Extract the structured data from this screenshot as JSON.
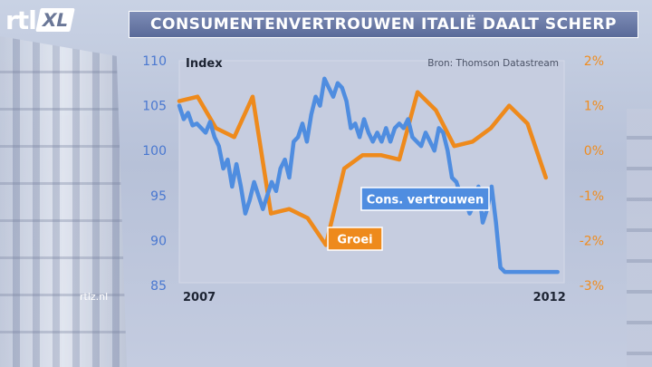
{
  "brand": {
    "logo_left": "rtl",
    "logo_right": "XL",
    "watermark": "rtlz.nl"
  },
  "header": {
    "title": "CONSUMENTENVERTROUWEN ITALIË DAALT SCHERP"
  },
  "colors": {
    "confidence": "#4f8de0",
    "growth": "#ee8a1c",
    "plot_bg": "#c6cde0"
  },
  "chart_data": {
    "type": "line",
    "title": "CONSUMENTENVERTROUWEN ITALIË DAALT SCHERP",
    "source": "Bron: Thomson Datastream",
    "ylabel": "Index",
    "xlabel": "",
    "x_range": [
      2007.0,
      2012.25
    ],
    "x_tick_labels": [
      "2007",
      "2012"
    ],
    "x_ticks": [
      2007.0,
      2012.0
    ],
    "y_left": {
      "range": [
        85,
        110
      ],
      "ticks": [
        85,
        90,
        95,
        100,
        105,
        110
      ],
      "tick_labels": [
        "85",
        "90",
        "95",
        "100",
        "105",
        "110"
      ]
    },
    "y_right": {
      "range": [
        -3,
        2
      ],
      "ticks": [
        -3,
        -2,
        -1,
        0,
        1,
        2
      ],
      "tick_labels": [
        "-3%",
        "-2%",
        "-1%",
        "0%",
        "1%",
        "2%"
      ]
    },
    "grid": false,
    "series": [
      {
        "name": "Cons. vertrouwen",
        "axis": "left",
        "x": [
          2007.0,
          2007.06,
          2007.12,
          2007.18,
          2007.24,
          2007.3,
          2007.36,
          2007.42,
          2007.48,
          2007.54,
          2007.6,
          2007.66,
          2007.72,
          2007.78,
          2007.84,
          2007.9,
          2007.96,
          2008.02,
          2008.08,
          2008.14,
          2008.2,
          2008.26,
          2008.32,
          2008.38,
          2008.44,
          2008.5,
          2008.56,
          2008.62,
          2008.68,
          2008.74,
          2008.8,
          2008.86,
          2008.92,
          2008.98,
          2009.04,
          2009.1,
          2009.16,
          2009.22,
          2009.28,
          2009.34,
          2009.4,
          2009.46,
          2009.52,
          2009.58,
          2009.64,
          2009.7,
          2009.76,
          2009.82,
          2009.88,
          2009.94,
          2010.0,
          2010.06,
          2010.12,
          2010.18,
          2010.24,
          2010.3,
          2010.36,
          2010.42,
          2010.48,
          2010.54,
          2010.6,
          2010.66,
          2010.72,
          2010.78,
          2010.84,
          2010.9,
          2010.96,
          2011.02,
          2011.08,
          2011.14,
          2011.2,
          2011.26,
          2011.32,
          2011.38,
          2011.44,
          2011.5,
          2011.56,
          2011.62,
          2011.68,
          2011.74,
          2011.8,
          2011.86,
          2011.92,
          2011.98,
          2012.04,
          2012.1,
          2012.16
        ],
        "values": [
          105.0,
          103.5,
          104.2,
          102.8,
          103.0,
          102.5,
          102.0,
          103.2,
          101.5,
          100.5,
          98.0,
          99.0,
          96.0,
          98.5,
          96.0,
          93.0,
          94.5,
          96.5,
          95.0,
          93.5,
          95.0,
          96.5,
          95.5,
          98.0,
          99.0,
          97.0,
          101.0,
          101.5,
          103.0,
          101.0,
          104.0,
          106.0,
          105.0,
          108.0,
          107.0,
          106.0,
          107.5,
          107.0,
          105.5,
          102.5,
          103.0,
          101.5,
          103.5,
          102.0,
          101.0,
          102.0,
          101.0,
          102.5,
          101.0,
          102.5,
          103.0,
          102.5,
          103.5,
          101.5,
          101.0,
          100.5,
          102.0,
          101.0,
          100.0,
          102.5,
          102.0,
          100.0,
          97.0,
          96.5,
          95.0,
          94.5,
          93.0,
          94.0,
          96.0,
          92.0,
          93.5,
          96.0,
          92.0,
          87.0,
          86.5,
          86.5,
          86.5,
          86.5,
          86.5,
          86.5,
          86.5,
          86.5,
          86.5,
          86.5,
          86.5,
          86.5,
          86.5
        ]
      },
      {
        "name": "Groei",
        "axis": "right",
        "x": [
          2007.0,
          2007.25,
          2007.5,
          2007.75,
          2008.0,
          2008.25,
          2008.5,
          2008.75,
          2009.0,
          2009.25,
          2009.5,
          2009.75,
          2010.0,
          2010.25,
          2010.5,
          2010.75,
          2011.0,
          2011.25,
          2011.5,
          2011.75,
          2012.0
        ],
        "values": [
          1.1,
          1.2,
          0.5,
          0.3,
          1.2,
          -1.4,
          -1.3,
          -1.5,
          -2.1,
          -0.4,
          -0.1,
          -0.1,
          -0.2,
          1.3,
          0.9,
          0.1,
          0.2,
          0.5,
          1.0,
          0.6,
          -0.6
        ]
      }
    ],
    "annotations": [
      {
        "text": "Cons. vertrouwen",
        "series": "Cons. vertrouwen"
      },
      {
        "text": "Groei",
        "series": "Groei"
      }
    ]
  }
}
